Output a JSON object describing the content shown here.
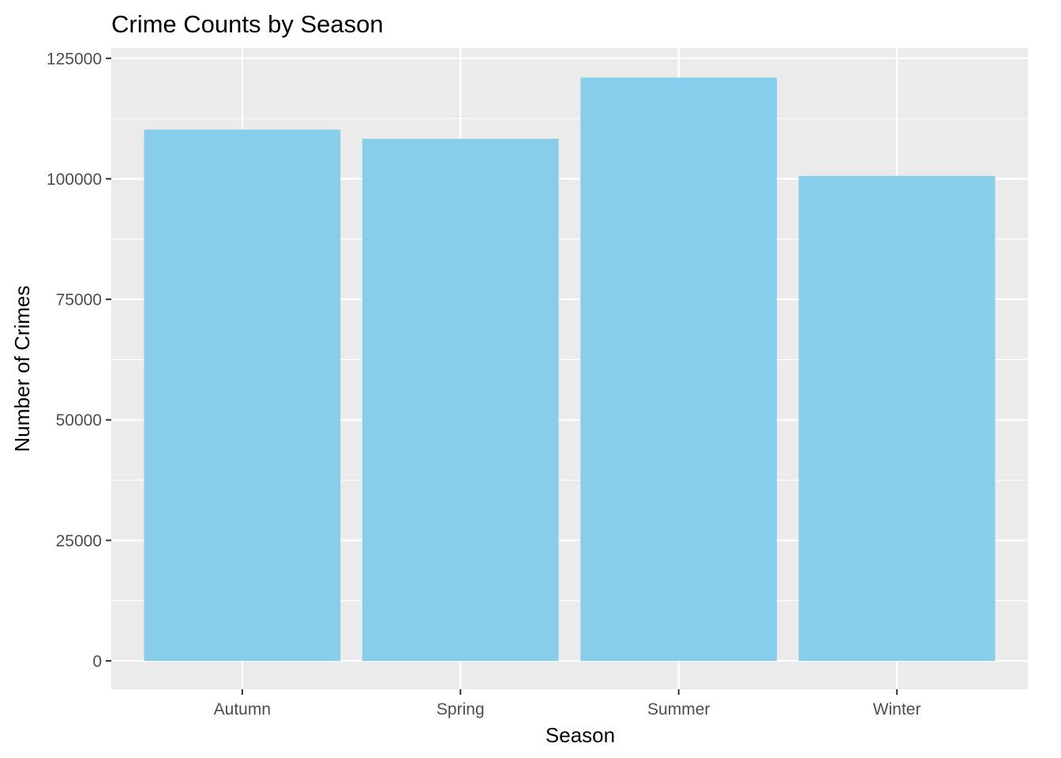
{
  "chart_data": {
    "type": "bar",
    "title": "Crime Counts by Season",
    "xlabel": "Season",
    "ylabel": "Number of Crimes",
    "categories": [
      "Autumn",
      "Spring",
      "Summer",
      "Winter"
    ],
    "values": [
      110200,
      108300,
      121000,
      100600
    ],
    "ylim": [
      -5900,
      127100
    ],
    "yticks": [
      0,
      25000,
      50000,
      75000,
      100000,
      125000
    ],
    "ytick_labels": [
      "0",
      "25000",
      "50000",
      "75000",
      "100000",
      "125000"
    ],
    "grid": true,
    "legend": "none",
    "colors": {
      "bar": "#87CEEB",
      "panel_background": "#EBEBEB",
      "grid": "#FFFFFF",
      "tick_text": "#4D4D4D",
      "tick_mark": "#333333"
    }
  }
}
